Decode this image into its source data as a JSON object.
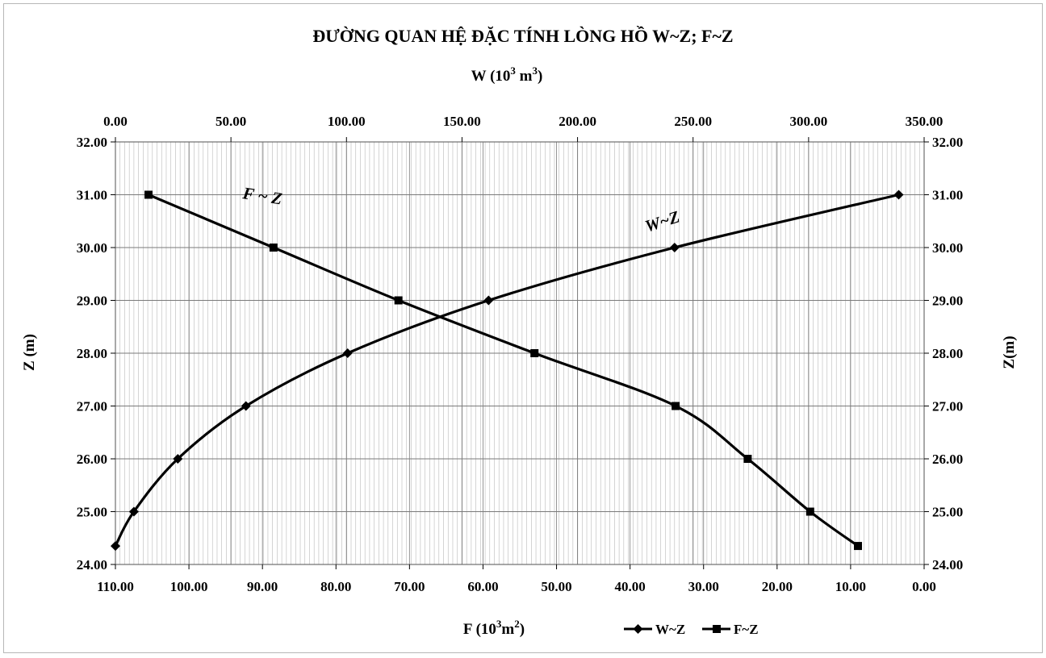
{
  "chart_data": {
    "type": "line",
    "title": "ĐƯỜNG  QUAN HỆ ĐẶC TÍNH LÒNG HỒ W~Z; F~Z",
    "top_axis_label": {
      "base": "W (10",
      "sup": "3",
      "mid": " m",
      "sup2": "3",
      "end": ")"
    },
    "bottom_axis_label": {
      "base": "F (10",
      "sup": "3",
      "mid": "m",
      "sup2": "2",
      "end": ")"
    },
    "left_axis_label": "Z (m)",
    "right_axis_label": "Z(m)",
    "top_ticks": [
      "0.00",
      "50.00",
      "100.00",
      "150.00",
      "200.00",
      "250.00",
      "300.00",
      "350.00"
    ],
    "bottom_ticks": [
      "110.00",
      "100.00",
      "90.00",
      "80.00",
      "70.00",
      "60.00",
      "50.00",
      "40.00",
      "30.00",
      "20.00",
      "10.00",
      "0.00"
    ],
    "y_ticks": [
      "24.00",
      "25.00",
      "26.00",
      "27.00",
      "28.00",
      "29.00",
      "30.00",
      "31.00",
      "32.00"
    ],
    "w_range": [
      0,
      350
    ],
    "f_range": [
      110,
      0
    ],
    "z_range": [
      24,
      32
    ],
    "grid": true,
    "legend_position": "bottom-center",
    "series": [
      {
        "name": "W~Z",
        "axis": "top",
        "marker": "diamond",
        "color": "#000000",
        "points": [
          {
            "x": 0.0,
            "z": 24.35
          },
          {
            "x": 8.0,
            "z": 25.0
          },
          {
            "x": 27.0,
            "z": 26.0
          },
          {
            "x": 56.5,
            "z": 27.0
          },
          {
            "x": 100.5,
            "z": 28.0
          },
          {
            "x": 161.5,
            "z": 29.0
          },
          {
            "x": 242.0,
            "z": 30.0
          },
          {
            "x": 339.0,
            "z": 31.0
          }
        ]
      },
      {
        "name": "F~Z",
        "axis": "bottom",
        "marker": "square",
        "color": "#000000",
        "points": [
          {
            "x": 105.5,
            "z": 31.0
          },
          {
            "x": 88.5,
            "z": 30.0
          },
          {
            "x": 71.5,
            "z": 29.0
          },
          {
            "x": 53.0,
            "z": 28.0
          },
          {
            "x": 33.8,
            "z": 27.0
          },
          {
            "x": 24.0,
            "z": 26.0
          },
          {
            "x": 15.5,
            "z": 25.0
          },
          {
            "x": 9.0,
            "z": 24.35
          }
        ]
      }
    ],
    "curve_labels": [
      {
        "text": "F ~ Z",
        "series": "F~Z"
      },
      {
        "text": "W~Z",
        "series": "W~Z"
      }
    ],
    "legend": [
      {
        "series": "W~Z",
        "label": "W~Z"
      },
      {
        "series": "F~Z",
        "label": "F~Z"
      }
    ]
  }
}
